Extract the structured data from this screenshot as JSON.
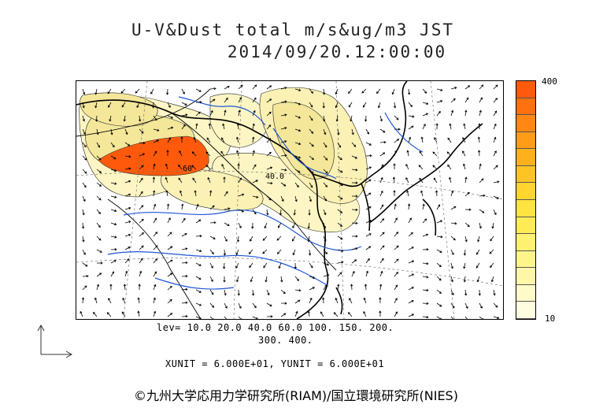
{
  "title": {
    "line1": "U-V&Dust total m/s&ug/m3 JST",
    "line2": "2014/09/20.12:00:00"
  },
  "contour_labels": [
    "60",
    "40.0"
  ],
  "colorbar": {
    "max_label": "400",
    "min_label": "10",
    "colors": [
      "#fffde0",
      "#fffbc8",
      "#fff7a8",
      "#fff48c",
      "#fff170",
      "#ffec55",
      "#ffe33e",
      "#ffd52e",
      "#ffc423",
      "#ffb11b",
      "#ff9e16",
      "#ff8812",
      "#ff700f",
      "#ff5a0c"
    ]
  },
  "levels": {
    "line1": "lev= 10.0 20.0 40.0 60.0 100. 150. 200.",
    "line2": "300. 400."
  },
  "units": "XUNIT = 6.000E+01, YUNIT = 6.000E+01",
  "copyright": "©九州大学応用力学研究所(RIAM)/国立環境研究所(NIES)",
  "palette": {
    "dust_low": "#fdf6c4",
    "dust_mid": "#f4e79a",
    "dust_high": "#ff5a0c",
    "river": "#1f56d6",
    "coast": "#000000"
  }
}
